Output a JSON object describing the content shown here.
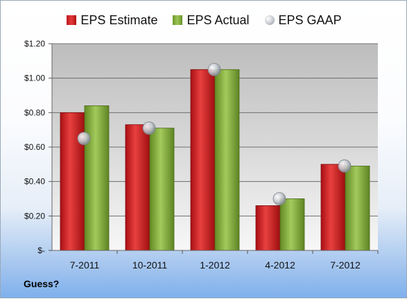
{
  "chart_data": {
    "type": "bar",
    "title": "",
    "xlabel": "",
    "ylabel": "",
    "categories": [
      "7-2011",
      "10-2011",
      "1-2012",
      "4-2012",
      "7-2012"
    ],
    "series": [
      {
        "name": "EPS Estimate",
        "type": "bar",
        "values": [
          0.8,
          0.73,
          1.05,
          0.26,
          0.5
        ],
        "color": "#d42a2a"
      },
      {
        "name": "EPS Actual",
        "type": "bar",
        "values": [
          0.84,
          0.71,
          1.05,
          0.3,
          0.49
        ],
        "color": "#8cb443"
      },
      {
        "name": "EPS GAAP",
        "type": "scatter",
        "values": [
          0.65,
          0.71,
          1.05,
          0.3,
          0.49
        ],
        "color": "#b8bcc4"
      }
    ],
    "ylim": [
      0,
      1.2
    ],
    "yticks": [
      0,
      0.2,
      0.4,
      0.6,
      0.8,
      1.0,
      1.2
    ],
    "ytick_labels": [
      "$-",
      "$0.20",
      "$0.40",
      "$0.60",
      "$0.80",
      "$1.00",
      "$1.20"
    ],
    "grid": true,
    "legend": "top"
  },
  "note": "Guess?"
}
